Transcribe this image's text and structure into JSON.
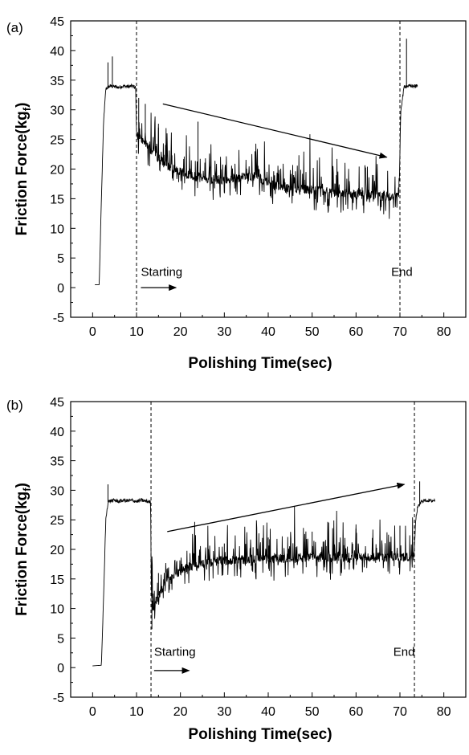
{
  "figure": {
    "panels": [
      "(a)",
      "(b)"
    ]
  },
  "chart_data": [
    {
      "panel_label": "(a)",
      "type": "line",
      "xlabel": "Polishing Time(sec)",
      "ylabel": "Friction Force(kg",
      "ylabel_subscript": "f",
      "ylabel_close": ")",
      "xlim": [
        -5,
        85
      ],
      "ylim": [
        -5,
        45
      ],
      "x_ticks": [
        0,
        10,
        20,
        30,
        40,
        50,
        60,
        70,
        80
      ],
      "y_ticks": [
        -5,
        0,
        5,
        10,
        15,
        20,
        25,
        30,
        35,
        40,
        45
      ],
      "grid": false,
      "markers_vertical_x": [
        10,
        70
      ],
      "annotations": [
        {
          "text": "Starting",
          "x": 11,
          "y": 2
        },
        {
          "text": "End",
          "x": 68,
          "y": 2
        }
      ],
      "trend_arrow": {
        "from": [
          16,
          31
        ],
        "to": [
          67,
          22
        ]
      },
      "start_arrow": {
        "from": [
          11,
          0
        ],
        "to": [
          19,
          0
        ]
      },
      "series": [
        {
          "x": [
            0.5,
            1.5,
            2.0,
            2.5,
            3.0,
            3.5,
            4.0,
            5.0,
            6.0,
            7.0,
            8.0,
            9.0,
            9.8,
            10.0,
            10.5,
            12,
            14,
            16,
            18,
            20,
            22,
            24,
            26,
            28,
            30,
            32,
            34,
            36,
            38,
            40,
            42,
            44,
            46,
            48,
            50,
            52,
            54,
            56,
            58,
            60,
            62,
            64,
            66,
            68,
            69.8,
            70.2,
            71.0,
            72.0,
            73.0,
            74.0
          ],
          "y": [
            0.5,
            0.5,
            15,
            28,
            33.5,
            33.8,
            34,
            33.9,
            33.8,
            34,
            33.9,
            34,
            33.8,
            26,
            25.5,
            24.2,
            22.5,
            21.2,
            20,
            19.6,
            19.1,
            18.6,
            18.3,
            18.2,
            18.3,
            18.4,
            18.6,
            18.8,
            18.5,
            17.8,
            17.2,
            16.9,
            16.8,
            16.6,
            16.5,
            16.3,
            16.1,
            16.0,
            15.9,
            15.8,
            15.7,
            15.6,
            15.5,
            15.4,
            15.5,
            30,
            34,
            34,
            34,
            34
          ],
          "spikes_peak_approx": [
            [
              3.5,
              38
            ],
            [
              4.5,
              39
            ],
            [
              10.5,
              32
            ],
            [
              12,
              31
            ],
            [
              15,
              27
            ],
            [
              24,
              28
            ],
            [
              37,
              23
            ],
            [
              71.5,
              42
            ]
          ]
        }
      ]
    },
    {
      "panel_label": "(b)",
      "type": "line",
      "xlabel": "Polishing Time(sec)",
      "ylabel": "Friction Force(kg",
      "ylabel_subscript": "f",
      "ylabel_close": ")",
      "xlim": [
        -5,
        85
      ],
      "ylim": [
        -5,
        45
      ],
      "x_ticks": [
        0,
        10,
        20,
        30,
        40,
        50,
        60,
        70,
        80
      ],
      "y_ticks": [
        -5,
        0,
        5,
        10,
        15,
        20,
        25,
        30,
        35,
        40,
        45
      ],
      "grid": false,
      "markers_vertical_x": [
        13.3,
        73.3
      ],
      "annotations": [
        {
          "text": "Starting",
          "x": 14,
          "y": 2
        },
        {
          "text": "End",
          "x": 68.5,
          "y": 2
        }
      ],
      "trend_arrow": {
        "from": [
          17,
          23
        ],
        "to": [
          71,
          31
        ]
      },
      "start_arrow": {
        "from": [
          14,
          -0.5
        ],
        "to": [
          22,
          -0.5
        ]
      },
      "series": [
        {
          "x": [
            0,
            2,
            2.5,
            3,
            3.5,
            4,
            5,
            6,
            7,
            8,
            9,
            10,
            11,
            12,
            13.2,
            13.4,
            13.7,
            14,
            14.5,
            15,
            16,
            17,
            18,
            19,
            20,
            22,
            24,
            26,
            28,
            30,
            32,
            34,
            36,
            38,
            40,
            42,
            44,
            46,
            48,
            50,
            52,
            54,
            56,
            58,
            60,
            62,
            64,
            66,
            68,
            70,
            72,
            73.2,
            73.6,
            74,
            75,
            76,
            77,
            78
          ],
          "y": [
            0.3,
            0.4,
            12,
            25,
            28,
            28.2,
            28.3,
            28.1,
            28.3,
            28.2,
            28.3,
            28.1,
            28.3,
            28.2,
            28,
            12,
            10,
            9.8,
            11,
            12.2,
            13.5,
            14.5,
            15.2,
            15.8,
            16.3,
            17.0,
            17.4,
            17.8,
            18.0,
            18.1,
            18.2,
            18.3,
            18.3,
            18.4,
            18.4,
            18.5,
            18.5,
            18.5,
            18.6,
            18.6,
            18.6,
            18.6,
            18.6,
            18.7,
            18.7,
            18.7,
            18.7,
            18.6,
            18.7,
            18.7,
            18.8,
            18.8,
            25,
            27,
            28.2,
            28.3,
            28.2,
            28.3
          ],
          "spikes_peak_approx": [
            [
              3.5,
              31
            ],
            [
              13.5,
              6.5
            ],
            [
              15,
              16
            ],
            [
              30,
              21
            ],
            [
              40,
              22
            ],
            [
              50,
              23
            ],
            [
              60,
              23.5
            ],
            [
              70,
              24
            ],
            [
              74.5,
              31.5
            ]
          ]
        }
      ]
    }
  ]
}
